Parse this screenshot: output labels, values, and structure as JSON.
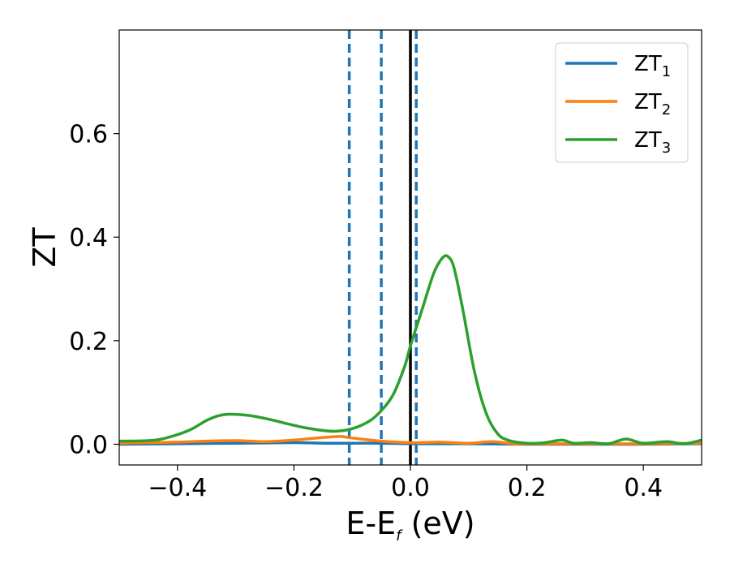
{
  "chart_data": {
    "type": "line",
    "xlabel": {
      "main": "E-E",
      "sub": "f",
      "suffix": " (eV)"
    },
    "ylabel": "ZT",
    "xlim": [
      -0.5,
      0.5
    ],
    "ylim": [
      -0.04,
      0.8
    ],
    "x_ticks": [
      {
        "value": -0.4,
        "label": "−0.4"
      },
      {
        "value": -0.2,
        "label": "−0.2"
      },
      {
        "value": 0.0,
        "label": "0.0"
      },
      {
        "value": 0.2,
        "label": "0.2"
      },
      {
        "value": 0.4,
        "label": "0.4"
      }
    ],
    "y_ticks": [
      {
        "value": 0.0,
        "label": "0.0"
      },
      {
        "value": 0.2,
        "label": "0.2"
      },
      {
        "value": 0.4,
        "label": "0.4"
      },
      {
        "value": 0.6,
        "label": "0.6"
      }
    ],
    "grid": false,
    "legend_position": "top-right",
    "series": [
      {
        "name": "ZT",
        "name_sub": "1",
        "color": "#1f77b4",
        "points": [
          [
            -0.5,
            0.0
          ],
          [
            -0.4,
            0.001
          ],
          [
            -0.3,
            0.002
          ],
          [
            -0.2,
            0.003
          ],
          [
            -0.15,
            0.002
          ],
          [
            -0.1,
            0.002
          ],
          [
            -0.05,
            0.002
          ],
          [
            0.0,
            0.001
          ],
          [
            0.05,
            0.001
          ],
          [
            0.1,
            0.001
          ],
          [
            0.2,
            0.0
          ],
          [
            0.3,
            0.0
          ],
          [
            0.4,
            0.0
          ],
          [
            0.5,
            0.001
          ]
        ]
      },
      {
        "name": "ZT",
        "name_sub": "2",
        "color": "#ff7f0e",
        "points": [
          [
            -0.5,
            0.002
          ],
          [
            -0.45,
            0.003
          ],
          [
            -0.4,
            0.004
          ],
          [
            -0.35,
            0.006
          ],
          [
            -0.3,
            0.007
          ],
          [
            -0.25,
            0.005
          ],
          [
            -0.2,
            0.008
          ],
          [
            -0.15,
            0.013
          ],
          [
            -0.12,
            0.015
          ],
          [
            -0.1,
            0.012
          ],
          [
            -0.05,
            0.006
          ],
          [
            0.0,
            0.003
          ],
          [
            0.05,
            0.004
          ],
          [
            0.1,
            0.002
          ],
          [
            0.14,
            0.005
          ],
          [
            0.18,
            0.001
          ],
          [
            0.25,
            0.001
          ],
          [
            0.3,
            0.001
          ],
          [
            0.4,
            0.001
          ],
          [
            0.5,
            0.002
          ]
        ]
      },
      {
        "name": "ZT",
        "name_sub": "3",
        "color": "#2ca02c",
        "points": [
          [
            -0.5,
            0.006
          ],
          [
            -0.45,
            0.007
          ],
          [
            -0.42,
            0.012
          ],
          [
            -0.38,
            0.027
          ],
          [
            -0.35,
            0.046
          ],
          [
            -0.33,
            0.055
          ],
          [
            -0.31,
            0.058
          ],
          [
            -0.28,
            0.056
          ],
          [
            -0.25,
            0.05
          ],
          [
            -0.22,
            0.042
          ],
          [
            -0.19,
            0.034
          ],
          [
            -0.16,
            0.028
          ],
          [
            -0.13,
            0.025
          ],
          [
            -0.1,
            0.03
          ],
          [
            -0.07,
            0.045
          ],
          [
            -0.05,
            0.065
          ],
          [
            -0.03,
            0.095
          ],
          [
            -0.01,
            0.15
          ],
          [
            0.0,
            0.19
          ],
          [
            0.02,
            0.26
          ],
          [
            0.04,
            0.33
          ],
          [
            0.055,
            0.36
          ],
          [
            0.065,
            0.362
          ],
          [
            0.075,
            0.34
          ],
          [
            0.09,
            0.26
          ],
          [
            0.11,
            0.14
          ],
          [
            0.13,
            0.06
          ],
          [
            0.15,
            0.02
          ],
          [
            0.17,
            0.007
          ],
          [
            0.2,
            0.002
          ],
          [
            0.23,
            0.003
          ],
          [
            0.26,
            0.008
          ],
          [
            0.28,
            0.002
          ],
          [
            0.31,
            0.003
          ],
          [
            0.34,
            0.001
          ],
          [
            0.37,
            0.01
          ],
          [
            0.4,
            0.002
          ],
          [
            0.44,
            0.005
          ],
          [
            0.47,
            0.001
          ],
          [
            0.5,
            0.008
          ]
        ]
      }
    ],
    "reference_lines": [
      {
        "x": -0.105,
        "style": "dashed",
        "color": "#1f77b4"
      },
      {
        "x": -0.05,
        "style": "dashed",
        "color": "#1f77b4"
      },
      {
        "x": 0.0,
        "style": "solid",
        "color": "#000000"
      },
      {
        "x": 0.01,
        "style": "dashed",
        "color": "#1f77b4"
      }
    ]
  }
}
